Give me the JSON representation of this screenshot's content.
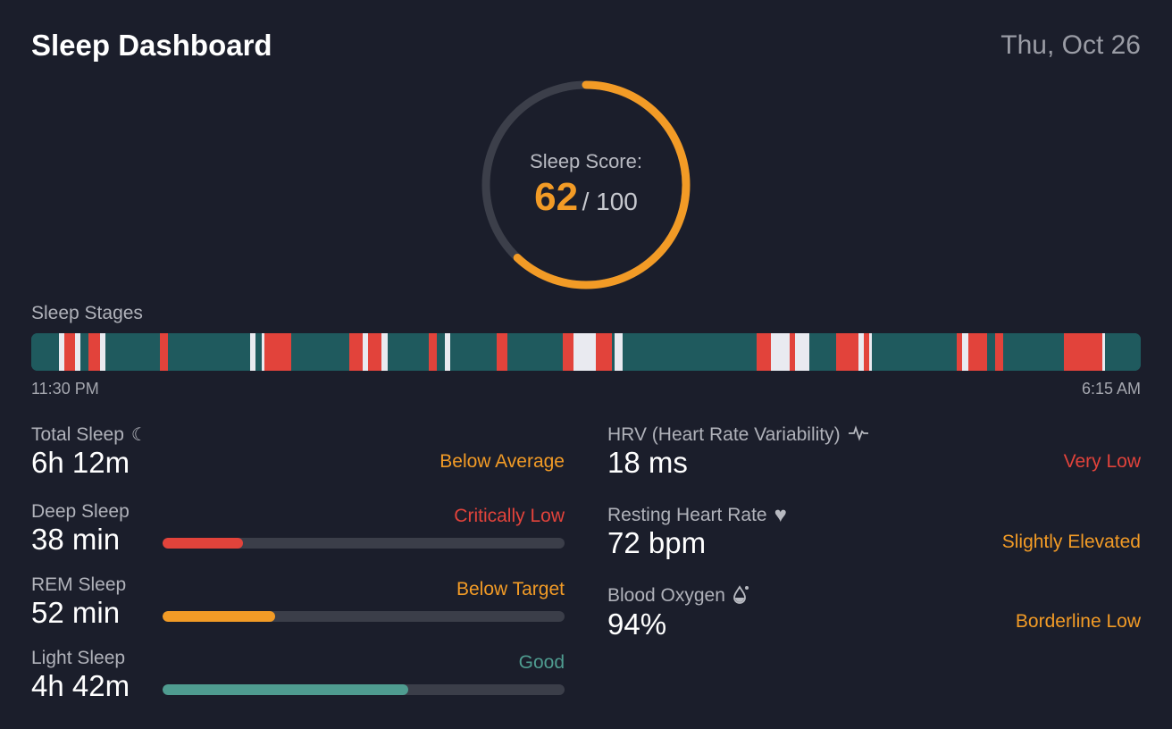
{
  "header": {
    "title": "Sleep Dashboard",
    "date": "Thu, Oct 26"
  },
  "score": {
    "label": "Sleep Score:",
    "value": 62,
    "value_text": "62",
    "max_text": "/ 100",
    "max": 100,
    "color": "#f29b26",
    "track": "#3c3f4a"
  },
  "stages": {
    "label": "Sleep Stages",
    "start_time": "11:30 PM",
    "end_time": "6:15 AM",
    "total_minutes": 405,
    "colors": {
      "teal": "#1f5a5e",
      "red": "#e2433b",
      "white": "#e9eaf0"
    },
    "segments": [
      [
        "teal",
        0
      ],
      [
        "white",
        10
      ],
      [
        "red",
        12
      ],
      [
        "white",
        16
      ],
      [
        "teal",
        18
      ],
      [
        "red",
        21
      ],
      [
        "white",
        25
      ],
      [
        "teal",
        27
      ],
      [
        "red",
        47
      ],
      [
        "teal",
        50
      ],
      [
        "white",
        80
      ],
      [
        "teal",
        82
      ],
      [
        "white",
        84
      ],
      [
        "red",
        85
      ],
      [
        "teal",
        95
      ],
      [
        "red",
        116
      ],
      [
        "white",
        121
      ],
      [
        "red",
        123
      ],
      [
        "white",
        128
      ],
      [
        "teal",
        130
      ],
      [
        "red",
        145
      ],
      [
        "teal",
        148
      ],
      [
        "white",
        151
      ],
      [
        "teal",
        153
      ],
      [
        "red",
        170
      ],
      [
        "teal",
        174
      ],
      [
        "red",
        194
      ],
      [
        "white",
        198
      ],
      [
        "red",
        206
      ],
      [
        "teal",
        212
      ],
      [
        "white",
        213
      ],
      [
        "teal",
        216
      ],
      [
        "red",
        265
      ],
      [
        "white",
        270
      ],
      [
        "red",
        277
      ],
      [
        "white",
        279
      ],
      [
        "teal",
        284
      ],
      [
        "red",
        294
      ],
      [
        "white",
        302
      ],
      [
        "red",
        304
      ],
      [
        "white",
        306
      ],
      [
        "teal",
        307
      ],
      [
        "red",
        338
      ],
      [
        "white",
        340
      ],
      [
        "red",
        342
      ],
      [
        "teal",
        349
      ],
      [
        "red",
        352
      ],
      [
        "teal",
        355
      ],
      [
        "red",
        377
      ],
      [
        "white",
        391
      ],
      [
        "teal",
        392
      ]
    ]
  },
  "left": [
    {
      "label": "Total Sleep",
      "value": "6h 12m",
      "status": "Below Average",
      "status_color": "#f29b26",
      "icon": "moon-stars-icon"
    },
    {
      "label": "Deep Sleep",
      "value": "38 min",
      "status": "Critically Low",
      "status_color": "#e2433b",
      "progress": 0.2,
      "bar_color": "#e2433b"
    },
    {
      "label": "REM Sleep",
      "value": "52 min",
      "status": "Below Target",
      "status_color": "#f29b26",
      "progress": 0.28,
      "bar_color": "#f29b26"
    },
    {
      "label": "Light Sleep",
      "value": "4h 42m",
      "status": "Good",
      "status_color": "#4f9c90",
      "progress": 0.61,
      "bar_color": "#4f9c90"
    }
  ],
  "right": [
    {
      "label": "HRV (Heart Rate Variability)",
      "value": "18 ms",
      "status": "Very Low",
      "status_color": "#e2433b",
      "icon": "heartbeat-pulse-icon"
    },
    {
      "label": "Resting Heart Rate",
      "value": "72 bpm",
      "status": "Slightly Elevated",
      "status_color": "#f29b26",
      "icon": "heart-icon"
    },
    {
      "label": "Blood Oxygen",
      "value": "94%",
      "status": "Borderline Low",
      "status_color": "#f29b26",
      "icon": "blood-drop-icon"
    }
  ]
}
